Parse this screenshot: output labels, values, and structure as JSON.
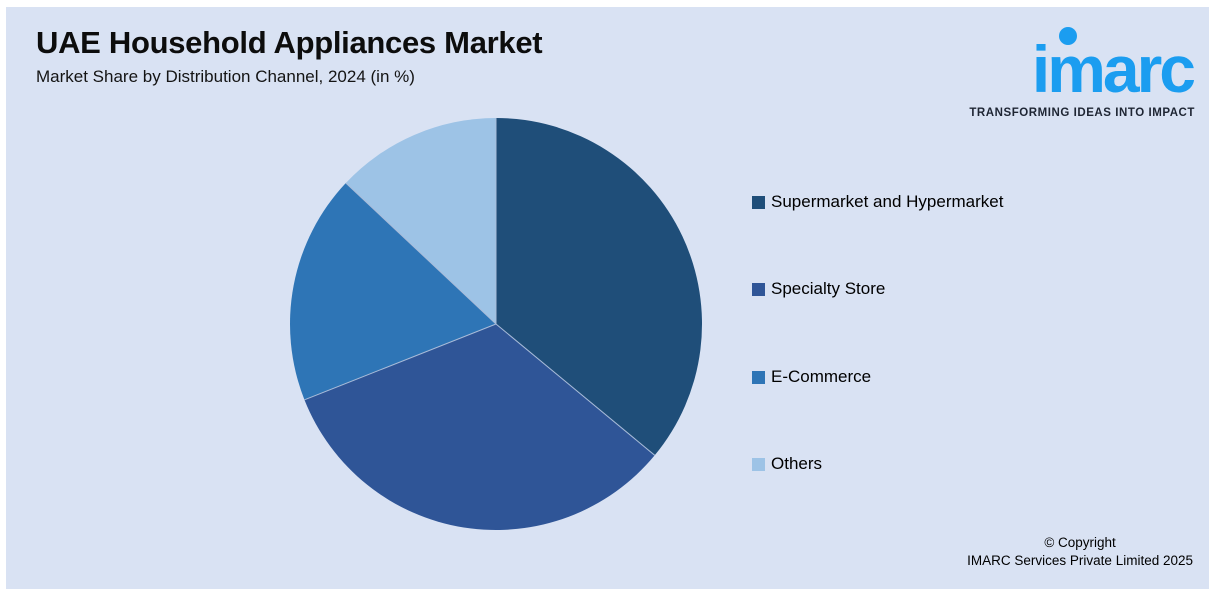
{
  "header": {
    "title": "UAE Household Appliances Market",
    "subtitle": "Market Share by Distribution Channel, 2024 (in %)"
  },
  "logo": {
    "brand": "imarc",
    "tagline": "TRANSFORMING IDEAS INTO IMPACT",
    "brand_color": "#1B9DF0",
    "tagline_color": "#1E2533"
  },
  "chart_data": {
    "type": "pie",
    "title": "UAE Household Appliances Market",
    "subtitle": "Market Share by Distribution Channel, 2024 (in %)",
    "categories": [
      "Supermarket and Hypermarket",
      "Specialty Store",
      "E-Commerce",
      "Others"
    ],
    "values": [
      36,
      33,
      18,
      13
    ],
    "unit": "%",
    "colors": [
      "#1F4E79",
      "#2F5597",
      "#2E75B6",
      "#9DC3E6"
    ],
    "start_angle_deg": 0,
    "direction": "clockwise",
    "legend_position": "right",
    "data_labels": false
  },
  "legend": {
    "items": [
      {
        "label": "Supermarket and Hypermarket",
        "color": "#1F4E79"
      },
      {
        "label": "Specialty Store",
        "color": "#2F5597"
      },
      {
        "label": "E-Commerce",
        "color": "#2E75B6"
      },
      {
        "label": "Others",
        "color": "#9DC3E6"
      }
    ]
  },
  "footer": {
    "copyright_line1": "© Copyright",
    "copyright_line2": "IMARC Services Private Limited 2025"
  },
  "theme": {
    "panel_background": "#D9E2F3",
    "page_background": "#FFFFFF",
    "separator_color": "#A9BCD9",
    "text_color": "#000000"
  }
}
